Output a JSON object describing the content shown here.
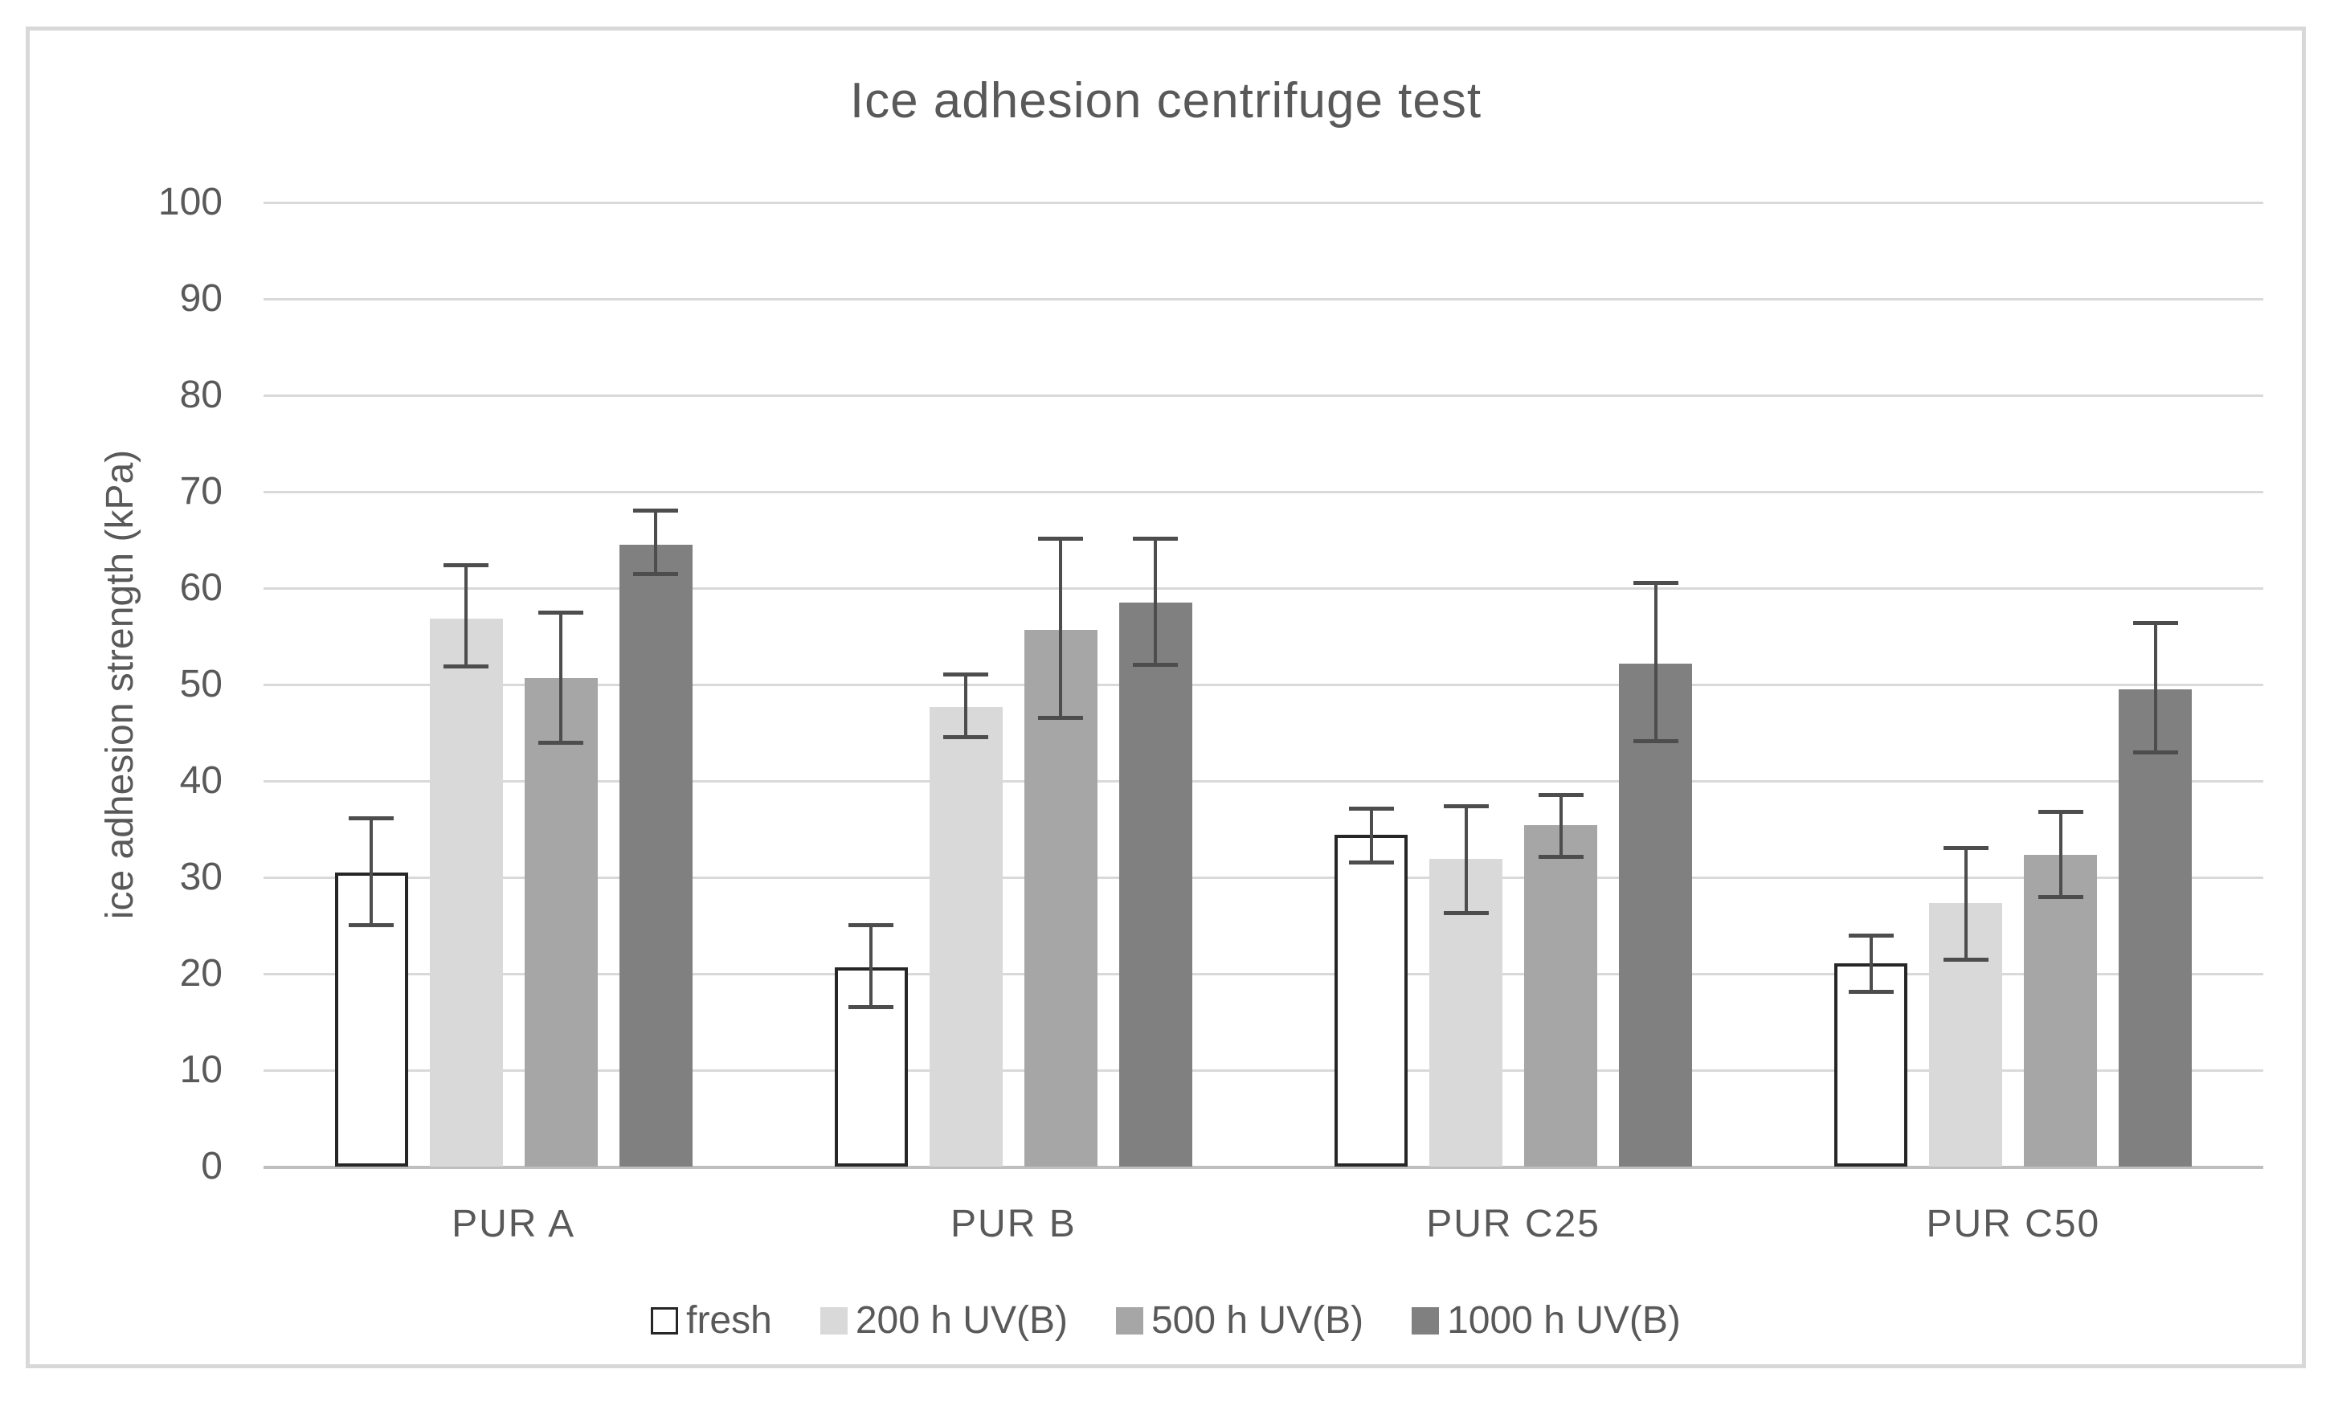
{
  "chart_data": {
    "type": "bar",
    "title": "Ice adhesion centrifuge test",
    "xlabel": "",
    "ylabel": "ice adhesion strength (kPa)",
    "ylim": [
      0,
      100
    ],
    "yticks": [
      0,
      10,
      20,
      30,
      40,
      50,
      60,
      70,
      80,
      90,
      100
    ],
    "grid": "horizontal",
    "legend_position": "bottom",
    "categories": [
      "PUR A",
      "PUR B",
      "PUR C25",
      "PUR C50"
    ],
    "series": [
      {
        "name": "fresh",
        "fill": "#ffffff",
        "outline": "#262626",
        "values": [
          30.5,
          20.7,
          34.4,
          21.1
        ],
        "error_bar_bottom": [
          25.1,
          16.6,
          31.6,
          18.2
        ],
        "error_bar_top": [
          36.2,
          25.1,
          37.2,
          24.0
        ]
      },
      {
        "name": "200 h UV(B)",
        "fill": "#d9d9d9",
        "outline": null,
        "values": [
          56.8,
          47.7,
          31.9,
          27.3
        ],
        "error_bar_bottom": [
          51.9,
          44.6,
          26.3,
          21.5
        ],
        "error_bar_top": [
          62.4,
          51.1,
          37.4,
          33.1
        ]
      },
      {
        "name": "500 h UV(B)",
        "fill": "#a6a6a6",
        "outline": null,
        "values": [
          50.7,
          55.7,
          35.4,
          32.3
        ],
        "error_bar_bottom": [
          44.0,
          46.6,
          32.2,
          28.0
        ],
        "error_bar_top": [
          57.5,
          65.2,
          38.6,
          36.8
        ]
      },
      {
        "name": "1000 h UV(B)",
        "fill": "#808080",
        "outline": null,
        "values": [
          64.5,
          58.5,
          52.2,
          49.5
        ],
        "error_bar_bottom": [
          61.5,
          52.1,
          44.2,
          43.0
        ],
        "error_bar_top": [
          68.1,
          65.2,
          60.6,
          56.4
        ]
      }
    ],
    "colors": {
      "gridline": "#d9d9d9",
      "axis_line": "#bfbfbf",
      "error_bar": "#4d4d4d",
      "text": "#595959",
      "frame_border": "#d8d8d8"
    }
  }
}
